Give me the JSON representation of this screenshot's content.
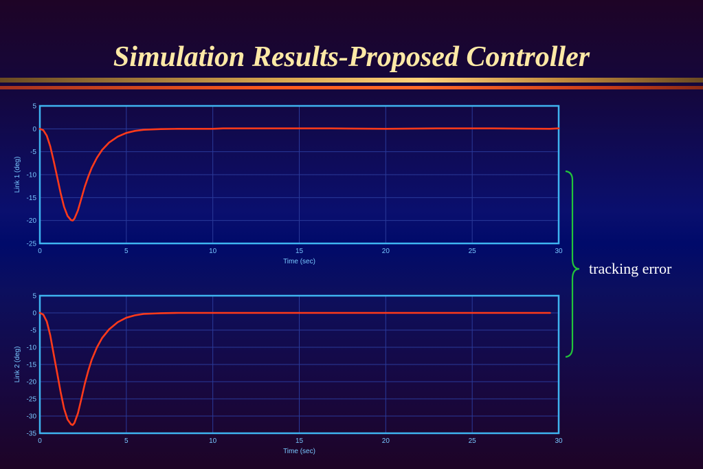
{
  "slide": {
    "title": "Simulation Results-Proposed Controller",
    "annotation": "tracking error",
    "colors": {
      "title": "#fde9a6",
      "plot_frame": "#3fb4f0",
      "grid": "#2a3a9a",
      "curve": "#ff3a1a",
      "brace": "#22c43a",
      "tick_text": "#79c8ff"
    }
  },
  "chart_data": [
    {
      "type": "line",
      "title": "",
      "xlabel": "Time (sec)",
      "ylabel": "Link 1 (deg)",
      "xlim": [
        0,
        30
      ],
      "ylim": [
        -25,
        5
      ],
      "xticks": [
        0,
        5,
        10,
        15,
        20,
        25,
        30
      ],
      "yticks": [
        5,
        0,
        -5,
        -10,
        -15,
        -20,
        -25
      ],
      "grid": true,
      "series": [
        {
          "x": [
            0,
            0.2,
            0.4,
            0.6,
            0.8,
            1.0,
            1.2,
            1.4,
            1.6,
            1.8,
            1.9,
            2.0,
            2.2,
            2.4,
            2.6,
            2.8,
            3.0,
            3.3,
            3.6,
            4.0,
            4.5,
            5.0,
            5.5,
            6.0,
            7.0,
            8.0,
            10.0,
            10.6,
            14.0,
            16.8,
            20.0,
            23.0,
            26.2,
            29.5,
            30.0
          ],
          "y": [
            0,
            -0.3,
            -1.5,
            -3.8,
            -7.0,
            -10.5,
            -14.0,
            -17.0,
            -19.0,
            -19.9,
            -20.0,
            -19.6,
            -17.8,
            -15.2,
            -12.6,
            -10.4,
            -8.5,
            -6.3,
            -4.6,
            -3.0,
            -1.7,
            -0.9,
            -0.45,
            -0.2,
            -0.05,
            0,
            0,
            0.1,
            0.1,
            0.1,
            0.0,
            0.1,
            0.1,
            0.0,
            0.1
          ]
        }
      ]
    },
    {
      "type": "line",
      "title": "",
      "xlabel": "Time (sec)",
      "ylabel": "Link 2 (deg)",
      "xlim": [
        0,
        30
      ],
      "ylim": [
        -35,
        5
      ],
      "xticks": [
        0,
        5,
        10,
        15,
        20,
        25,
        30
      ],
      "yticks": [
        5,
        0,
        -5,
        -10,
        -15,
        -20,
        -25,
        -30,
        -35
      ],
      "grid": true,
      "series": [
        {
          "x": [
            0,
            0.2,
            0.4,
            0.6,
            0.8,
            1.0,
            1.2,
            1.4,
            1.6,
            1.8,
            1.9,
            2.0,
            2.2,
            2.4,
            2.6,
            2.8,
            3.0,
            3.3,
            3.6,
            4.0,
            4.5,
            5.0,
            5.5,
            6.0,
            7.0,
            8.0,
            10.0,
            15.0,
            20.0,
            25.0,
            29.5
          ],
          "y": [
            0,
            -0.5,
            -2.5,
            -6.5,
            -12.0,
            -17.5,
            -23.0,
            -27.8,
            -31.0,
            -32.4,
            -32.6,
            -32.0,
            -29.2,
            -25.0,
            -20.6,
            -16.8,
            -13.6,
            -10.0,
            -7.3,
            -4.8,
            -2.7,
            -1.4,
            -0.7,
            -0.3,
            -0.08,
            0,
            0,
            0,
            0,
            0,
            0
          ]
        }
      ]
    }
  ]
}
